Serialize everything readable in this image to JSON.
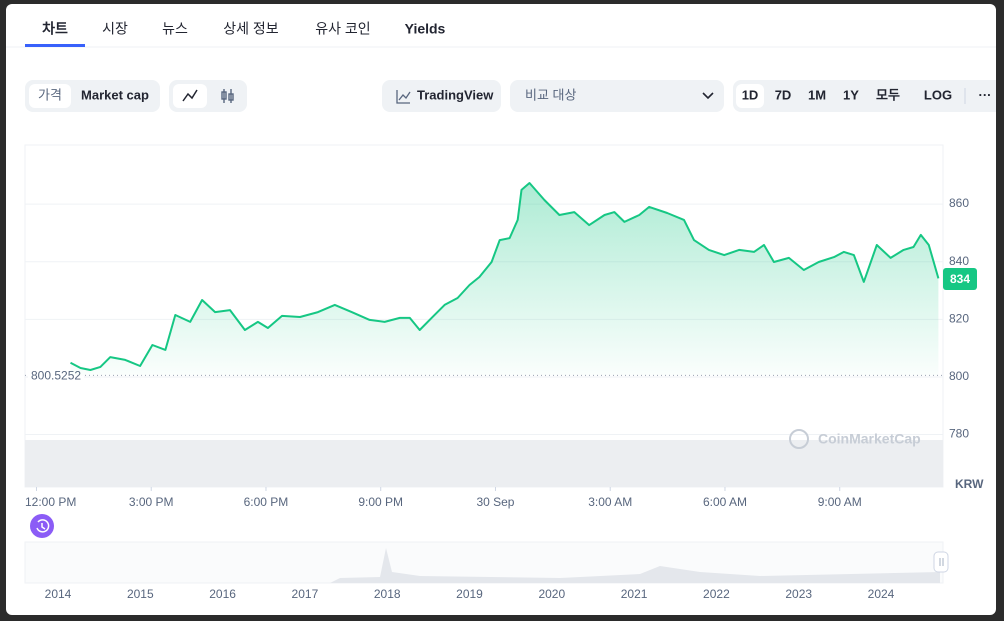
{
  "tabs": [
    "차트",
    "시장",
    "뉴스",
    "상세 정보",
    "유사 코인",
    "Yields"
  ],
  "active_tab": 0,
  "controls": {
    "price_toggle": [
      "가격",
      "Market cap"
    ],
    "tradingview": "TradingView",
    "compare": "비교 대상",
    "ranges": [
      "1D",
      "7D",
      "1M",
      "1Y",
      "모두",
      "LOG"
    ],
    "more": "···",
    "active_range": 0
  },
  "chart_data": {
    "type": "line",
    "color": "#16c784",
    "x": [
      12.89,
      13.15,
      13.41,
      13.67,
      13.93,
      14.32,
      14.71,
      15.03,
      15.37,
      15.63,
      16.02,
      16.33,
      16.67,
      17.06,
      17.45,
      17.79,
      18.05,
      18.42,
      18.89,
      19.36,
      19.8,
      20.24,
      20.71,
      21.1,
      21.5,
      21.76,
      22.02,
      22.33,
      22.67,
      23.01,
      23.32,
      23.58,
      23.9,
      24.11,
      24.37,
      24.58,
      24.68,
      24.89,
      25.28,
      25.67,
      26.06,
      26.45,
      26.85,
      27.11,
      27.37,
      27.76,
      28.02,
      28.49,
      28.93,
      29.19,
      29.58,
      29.98,
      30.37,
      30.76,
      31.02,
      31.28,
      31.67,
      32.06,
      32.45,
      32.85,
      33.11,
      33.37,
      33.63,
      33.97,
      34.33,
      34.67,
      34.93,
      35.12,
      35.33,
      35.58
    ],
    "values": [
      804.9,
      803.1,
      802.4,
      803.5,
      806.9,
      805.9,
      803.8,
      811.1,
      809.4,
      821.5,
      819.1,
      826.7,
      822.5,
      823.2,
      816.3,
      819.1,
      817,
      821.2,
      820.8,
      822.5,
      825,
      822.5,
      819.8,
      819.1,
      820.5,
      820.5,
      816.3,
      820.5,
      825,
      827.4,
      831.9,
      834.7,
      839.9,
      847.5,
      848.2,
      854.5,
      864.9,
      867.3,
      861.4,
      856.2,
      857.2,
      852.7,
      856.2,
      857.2,
      853.8,
      856.2,
      859,
      856.9,
      854.5,
      847.5,
      844.1,
      842.3,
      844.1,
      843.4,
      845.8,
      839.9,
      841.3,
      837.1,
      839.9,
      841.6,
      843.4,
      842.3,
      833,
      845.8,
      841.3,
      844.1,
      845.1,
      849.3,
      845.8,
      834.2
    ],
    "xlim": [
      11.7,
      35.7
    ],
    "xticks": [
      {
        "value": 12,
        "label": "12:00 PM"
      },
      {
        "value": 15,
        "label": "3:00 PM"
      },
      {
        "value": 18,
        "label": "6:00 PM"
      },
      {
        "value": 21,
        "label": "9:00 PM"
      },
      {
        "value": 24,
        "label": "30 Sep"
      },
      {
        "value": 27,
        "label": "3:00 AM"
      },
      {
        "value": 30,
        "label": "6:00 AM"
      },
      {
        "value": 33,
        "label": "9:00 AM"
      }
    ],
    "ylim": [
      761.8,
      880.5
    ],
    "yticks": [
      780,
      800,
      820,
      840,
      860
    ],
    "grid": true,
    "reference_value": 800.5252,
    "last_price": 834,
    "unit": "KRW",
    "watermark": "CoinMarketCap"
  },
  "navigator": {
    "years": [
      "2014",
      "2015",
      "2016",
      "2017",
      "2018",
      "2019",
      "2020",
      "2021",
      "2022",
      "2023",
      "2024"
    ]
  }
}
